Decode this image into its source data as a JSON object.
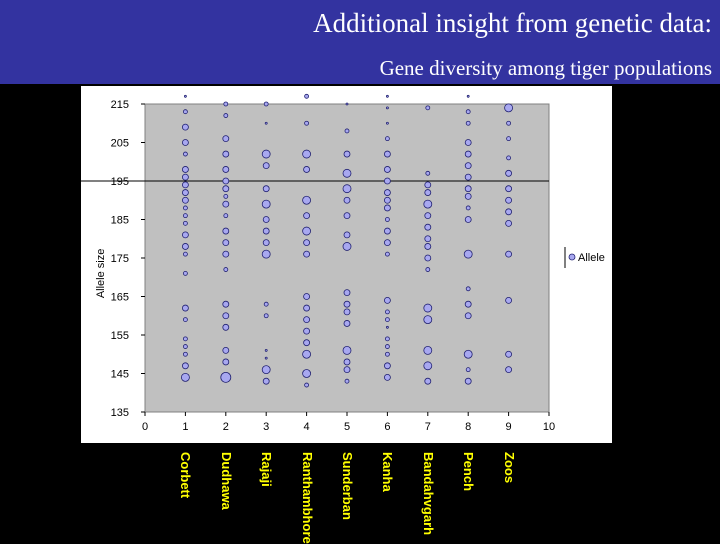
{
  "header": {
    "title": "Additional insight from genetic data:",
    "subtitle": "Gene diversity among tiger populations"
  },
  "colors": {
    "header_bg": "#3333a0",
    "plot_bg": "#c0c0c0",
    "marker_fill": "#a8a8f0",
    "marker_stroke": "#202070",
    "label_text": "#ffff00"
  },
  "chart_data": {
    "type": "scatter",
    "title": "",
    "xlabel": "",
    "ylabel": "Allele size",
    "xlim": [
      0,
      10
    ],
    "ylim": [
      135,
      215
    ],
    "xticks": [
      "0",
      "1",
      "2",
      "3",
      "4",
      "5",
      "6",
      "7",
      "8",
      "9",
      "10"
    ],
    "yticks": [
      "135",
      "145",
      "155",
      "165",
      "175",
      "185",
      "195",
      "205",
      "215"
    ],
    "grid": "horizontal",
    "reference_line_y": 195,
    "legend": {
      "position": "right",
      "entries": [
        "Allele"
      ]
    },
    "categories": [
      "Corbett",
      "Dudhawa",
      "Rajaji",
      "Ranthambhore",
      "Sunderban",
      "Kanha",
      "Bandahvgarh",
      "Pench",
      "Zoos"
    ],
    "series": [
      {
        "name": "Allele",
        "points": [
          [
            1,
            217,
            1
          ],
          [
            1,
            213,
            2
          ],
          [
            1,
            209,
            3
          ],
          [
            1,
            205,
            3
          ],
          [
            1,
            202,
            2
          ],
          [
            1,
            198,
            3
          ],
          [
            1,
            196,
            3
          ],
          [
            1,
            194,
            3
          ],
          [
            1,
            192,
            3
          ],
          [
            1,
            190,
            3
          ],
          [
            1,
            188,
            2
          ],
          [
            1,
            186,
            2
          ],
          [
            1,
            184,
            2
          ],
          [
            1,
            181,
            3
          ],
          [
            1,
            178,
            3
          ],
          [
            1,
            176,
            2
          ],
          [
            1,
            171,
            2
          ],
          [
            1,
            162,
            3
          ],
          [
            1,
            159,
            2
          ],
          [
            1,
            154,
            2
          ],
          [
            1,
            152,
            2
          ],
          [
            1,
            150,
            2
          ],
          [
            1,
            147,
            3
          ],
          [
            1,
            144,
            4
          ],
          [
            2,
            215,
            2
          ],
          [
            2,
            212,
            2
          ],
          [
            2,
            206,
            3
          ],
          [
            2,
            202,
            3
          ],
          [
            2,
            198,
            3
          ],
          [
            2,
            195,
            3
          ],
          [
            2,
            193,
            3
          ],
          [
            2,
            191,
            2
          ],
          [
            2,
            189,
            3
          ],
          [
            2,
            186,
            2
          ],
          [
            2,
            182,
            3
          ],
          [
            2,
            179,
            3
          ],
          [
            2,
            176,
            3
          ],
          [
            2,
            172,
            2
          ],
          [
            2,
            163,
            3
          ],
          [
            2,
            160,
            3
          ],
          [
            2,
            157,
            3
          ],
          [
            2,
            151,
            3
          ],
          [
            2,
            148,
            3
          ],
          [
            2,
            144,
            5
          ],
          [
            3,
            215,
            2
          ],
          [
            3,
            210,
            1
          ],
          [
            3,
            202,
            4
          ],
          [
            3,
            199,
            3
          ],
          [
            3,
            193,
            3
          ],
          [
            3,
            189,
            4
          ],
          [
            3,
            185,
            3
          ],
          [
            3,
            182,
            3
          ],
          [
            3,
            179,
            3
          ],
          [
            3,
            176,
            4
          ],
          [
            3,
            163,
            2
          ],
          [
            3,
            160,
            2
          ],
          [
            3,
            151,
            1
          ],
          [
            3,
            149,
            1
          ],
          [
            3,
            146,
            4
          ],
          [
            3,
            143,
            3
          ],
          [
            4,
            217,
            2
          ],
          [
            4,
            210,
            2
          ],
          [
            4,
            202,
            4
          ],
          [
            4,
            198,
            3
          ],
          [
            4,
            190,
            4
          ],
          [
            4,
            186,
            3
          ],
          [
            4,
            182,
            4
          ],
          [
            4,
            179,
            3
          ],
          [
            4,
            176,
            3
          ],
          [
            4,
            165,
            3
          ],
          [
            4,
            162,
            3
          ],
          [
            4,
            159,
            3
          ],
          [
            4,
            156,
            3
          ],
          [
            4,
            153,
            3
          ],
          [
            4,
            150,
            4
          ],
          [
            4,
            145,
            4
          ],
          [
            4,
            142,
            2
          ],
          [
            5,
            215,
            1
          ],
          [
            5,
            208,
            2
          ],
          [
            5,
            202,
            3
          ],
          [
            5,
            197,
            4
          ],
          [
            5,
            193,
            4
          ],
          [
            5,
            190,
            3
          ],
          [
            5,
            186,
            3
          ],
          [
            5,
            181,
            3
          ],
          [
            5,
            178,
            4
          ],
          [
            5,
            166,
            3
          ],
          [
            5,
            163,
            3
          ],
          [
            5,
            161,
            3
          ],
          [
            5,
            158,
            3
          ],
          [
            5,
            151,
            4
          ],
          [
            5,
            148,
            3
          ],
          [
            5,
            146,
            3
          ],
          [
            5,
            143,
            2
          ],
          [
            6,
            217,
            1
          ],
          [
            6,
            214,
            1
          ],
          [
            6,
            210,
            1
          ],
          [
            6,
            206,
            2
          ],
          [
            6,
            202,
            3
          ],
          [
            6,
            198,
            3
          ],
          [
            6,
            195,
            3
          ],
          [
            6,
            192,
            3
          ],
          [
            6,
            190,
            3
          ],
          [
            6,
            188,
            3
          ],
          [
            6,
            185,
            2
          ],
          [
            6,
            182,
            3
          ],
          [
            6,
            179,
            3
          ],
          [
            6,
            176,
            2
          ],
          [
            6,
            164,
            3
          ],
          [
            6,
            161,
            2
          ],
          [
            6,
            159,
            2
          ],
          [
            6,
            157,
            1
          ],
          [
            6,
            154,
            2
          ],
          [
            6,
            152,
            2
          ],
          [
            6,
            150,
            2
          ],
          [
            6,
            147,
            3
          ],
          [
            6,
            144,
            3
          ],
          [
            7,
            214,
            2
          ],
          [
            7,
            197,
            2
          ],
          [
            7,
            194,
            3
          ],
          [
            7,
            192,
            3
          ],
          [
            7,
            189,
            4
          ],
          [
            7,
            186,
            3
          ],
          [
            7,
            183,
            3
          ],
          [
            7,
            180,
            3
          ],
          [
            7,
            178,
            3
          ],
          [
            7,
            175,
            3
          ],
          [
            7,
            172,
            2
          ],
          [
            7,
            162,
            4
          ],
          [
            7,
            159,
            4
          ],
          [
            7,
            151,
            4
          ],
          [
            7,
            147,
            4
          ],
          [
            7,
            143,
            3
          ],
          [
            8,
            217,
            1
          ],
          [
            8,
            213,
            2
          ],
          [
            8,
            210,
            2
          ],
          [
            8,
            205,
            3
          ],
          [
            8,
            202,
            3
          ],
          [
            8,
            199,
            3
          ],
          [
            8,
            196,
            3
          ],
          [
            8,
            193,
            3
          ],
          [
            8,
            191,
            3
          ],
          [
            8,
            188,
            2
          ],
          [
            8,
            185,
            3
          ],
          [
            8,
            176,
            4
          ],
          [
            8,
            167,
            2
          ],
          [
            8,
            163,
            3
          ],
          [
            8,
            160,
            3
          ],
          [
            8,
            150,
            4
          ],
          [
            8,
            146,
            2
          ],
          [
            8,
            143,
            3
          ],
          [
            9,
            214,
            4
          ],
          [
            9,
            210,
            2
          ],
          [
            9,
            206,
            2
          ],
          [
            9,
            201,
            2
          ],
          [
            9,
            197,
            3
          ],
          [
            9,
            193,
            3
          ],
          [
            9,
            190,
            3
          ],
          [
            9,
            187,
            3
          ],
          [
            9,
            184,
            3
          ],
          [
            9,
            176,
            3
          ],
          [
            9,
            164,
            3
          ],
          [
            9,
            150,
            3
          ],
          [
            9,
            146,
            3
          ]
        ]
      }
    ]
  }
}
